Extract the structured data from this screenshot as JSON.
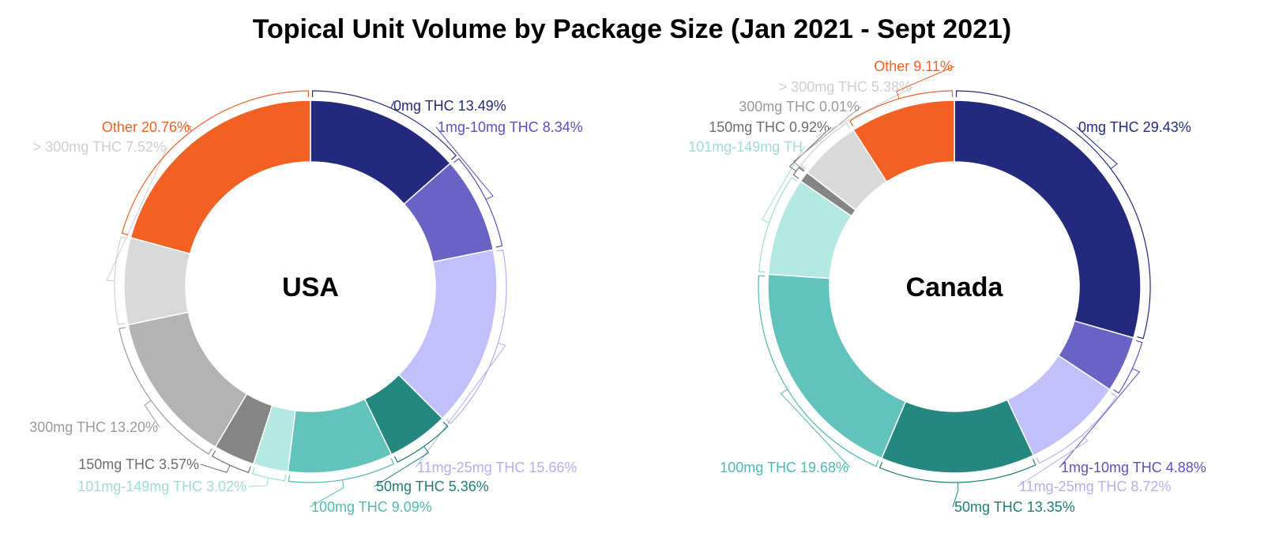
{
  "chart_data": {
    "type": "pie",
    "title": "Topical Unit Volume by Package Size (Jan 2021 - Sept 2021)",
    "charts": [
      {
        "name": "USA",
        "slices": [
          {
            "label": "0mg THC",
            "value": 13.49,
            "display": "0mg THC 13.49%",
            "color": "#232a7e"
          },
          {
            "label": "1mg-10mg THC",
            "value": 8.34,
            "display": "1mg-10mg THC 8.34%",
            "color": "#6a63c6"
          },
          {
            "label": "11mg-25mg THC",
            "value": 15.66,
            "display": "11mg-25mg THC 15.66%",
            "color": "#c2c0fb"
          },
          {
            "label": "50mg THC",
            "value": 5.36,
            "display": "50mg THC 5.36%",
            "color": "#248880"
          },
          {
            "label": "100mg THC",
            "value": 9.09,
            "display": "100mg THC 9.09%",
            "color": "#62c3bc"
          },
          {
            "label": "101mg-149mg THC",
            "value": 3.02,
            "display": "101mg-149mg THC 3.02%",
            "color": "#b3e8e3"
          },
          {
            "label": "150mg THC",
            "value": 3.57,
            "display": "150mg THC 3.57%",
            "color": "#858585"
          },
          {
            "label": "300mg THC",
            "value": 13.2,
            "display": "300mg THC 13.20%",
            "color": "#b3b3b3"
          },
          {
            "label": "> 300mg THC",
            "value": 7.52,
            "display": "> 300mg THC 7.52%",
            "color": "#d9d9d9"
          },
          {
            "label": "Other",
            "value": 20.76,
            "display": "Other 20.76%",
            "color": "#f26024"
          }
        ]
      },
      {
        "name": "Canada",
        "slices": [
          {
            "label": "0mg THC",
            "value": 29.43,
            "display": "0mg THC 29.43%",
            "color": "#232a7e"
          },
          {
            "label": "1mg-10mg THC",
            "value": 4.88,
            "display": "1mg-10mg THC 4.88%",
            "color": "#6a63c6"
          },
          {
            "label": "11mg-25mg THC",
            "value": 8.72,
            "display": "11mg-25mg THC 8.72%",
            "color": "#c2c0fb"
          },
          {
            "label": "50mg THC",
            "value": 13.35,
            "display": "50mg THC 13.35%",
            "color": "#248880"
          },
          {
            "label": "100mg THC",
            "value": 19.68,
            "display": "100mg THC 19.68%",
            "color": "#62c3bc"
          },
          {
            "label": "101mg-149mg THC",
            "value": 8.52,
            "display": "101mg-149mg TH",
            "color": "#b3e8e3"
          },
          {
            "label": "150mg THC",
            "value": 0.92,
            "display": "150mg THC 0.92%",
            "color": "#858585"
          },
          {
            "label": "300mg THC",
            "value": 0.01,
            "display": "300mg THC 0.01%",
            "color": "#b3b3b3"
          },
          {
            "label": "> 300mg THC",
            "value": 5.38,
            "display": "> 300mg THC 5.38%",
            "color": "#d9d9d9"
          },
          {
            "label": "Other",
            "value": 9.11,
            "display": "Other 9.11%",
            "color": "#f26024"
          }
        ]
      }
    ]
  }
}
